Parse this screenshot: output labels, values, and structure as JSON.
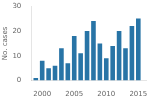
{
  "chart_data": {
    "type": "bar",
    "x": [
      1999,
      2000,
      2001,
      2002,
      2003,
      2004,
      2005,
      2006,
      2007,
      2008,
      2009,
      2010,
      2011,
      2012,
      2013,
      2014,
      2015
    ],
    "values": [
      1,
      8,
      5,
      6,
      13,
      7,
      18,
      11,
      20,
      24,
      15,
      9,
      14,
      20,
      13,
      22,
      25
    ],
    "color": "#2874a6",
    "ylabel": "No. cases",
    "xlim": [
      1998.3,
      2016.2
    ],
    "xticks": [
      2000,
      2005,
      2010,
      2015
    ],
    "ylim": [
      0,
      30
    ],
    "yticks": [
      0,
      10,
      20,
      30
    ],
    "grid": false
  }
}
